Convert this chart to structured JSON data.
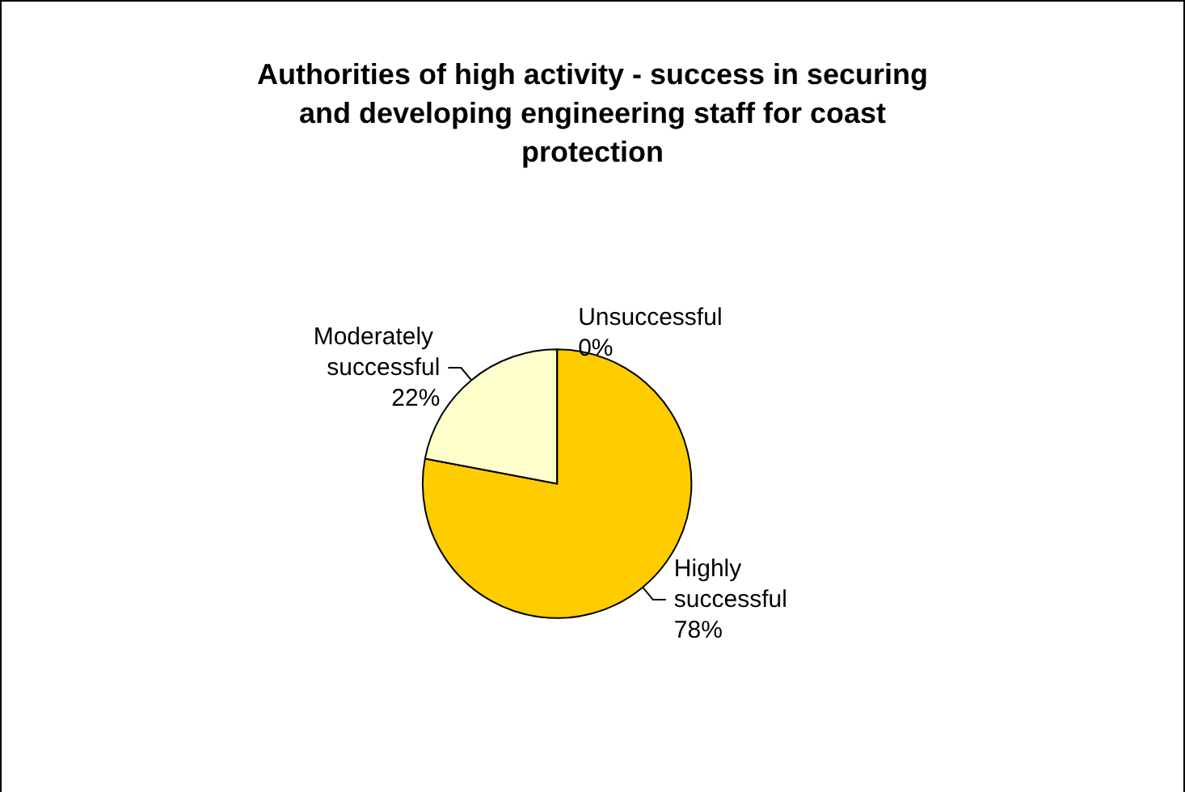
{
  "chart_data": {
    "type": "pie",
    "title": "Authorities of high activity - success in securing and developing engineering staff for coast protection",
    "categories": [
      "Highly successful",
      "Moderately successful",
      "Unsuccessful"
    ],
    "values": [
      78,
      22,
      0
    ],
    "colors": [
      "#ffcc00",
      "#ffffcc",
      "#ffffff"
    ],
    "value_labels": [
      "78%",
      "22%",
      "0%"
    ],
    "legend": false
  }
}
